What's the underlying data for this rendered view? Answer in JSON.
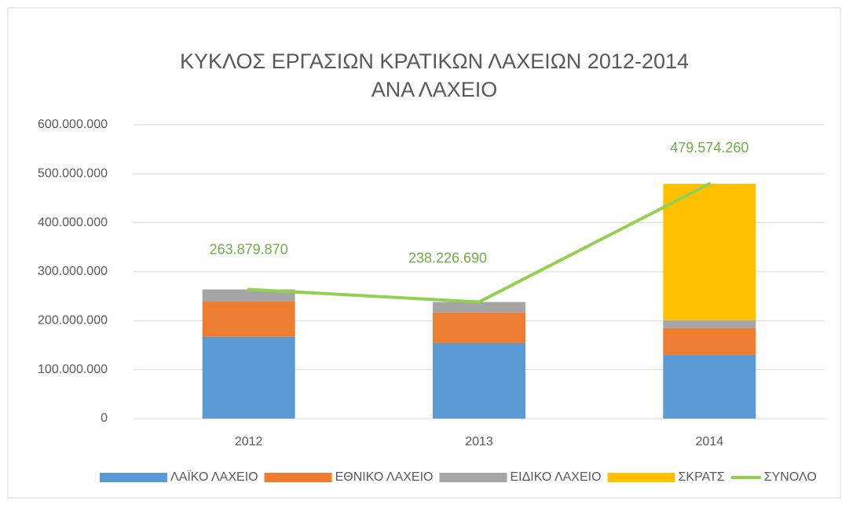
{
  "chart_data": {
    "type": "bar",
    "stacked": true,
    "title": [
      "ΚΥΚΛΟΣ ΕΡΓΑΣΙΩΝ ΚΡΑΤΙΚΩΝ ΛΑΧΕΙΩΝ 2012-2014",
      "ΑΝΑ ΛΑΧΕΙΟ"
    ],
    "categories": [
      "2012",
      "2013",
      "2014"
    ],
    "series": [
      {
        "name": "ΛΑΪΚΟ ΛΑΧΕΙΟ",
        "color": "#5b9bd5",
        "values": [
          167000000,
          154000000,
          130000000
        ]
      },
      {
        "name": "ΕΘΝΙΚΟ ΛΑΧΕΙΟ",
        "color": "#ed7d31",
        "values": [
          72000000,
          63000000,
          55000000
        ]
      },
      {
        "name": "ΕΙΔΙΚΟ ΛΑΧΕΙΟ",
        "color": "#a5a5a5",
        "values": [
          24879870,
          21226690,
          16000000
        ]
      },
      {
        "name": "ΣΚΡΑΤΣ",
        "color": "#ffc000",
        "values": [
          0,
          0,
          278574260
        ]
      },
      {
        "name": "ΣΥΝΟΛΟ",
        "type": "line",
        "color": "#92d050",
        "label_color": "#70ad47",
        "values": [
          263879870,
          238226690,
          479574260
        ],
        "value_labels": [
          "263.879.870",
          "238.226.690",
          "479.574.260"
        ]
      }
    ],
    "ylim": [
      0,
      600000000
    ],
    "yticks": [
      0,
      {
        "value": 100000000,
        "label": "100.000.000"
      },
      {
        "value": 200000000,
        "label": "200.000.000"
      },
      {
        "value": 300000000,
        "label": "300.000.000"
      },
      {
        "value": 400000000,
        "label": "400.000.000"
      },
      {
        "value": 500000000,
        "label": "500.000.000"
      },
      {
        "value": 600000000,
        "label": "600.000.000"
      }
    ],
    "grid": true,
    "legend": "bottom"
  }
}
